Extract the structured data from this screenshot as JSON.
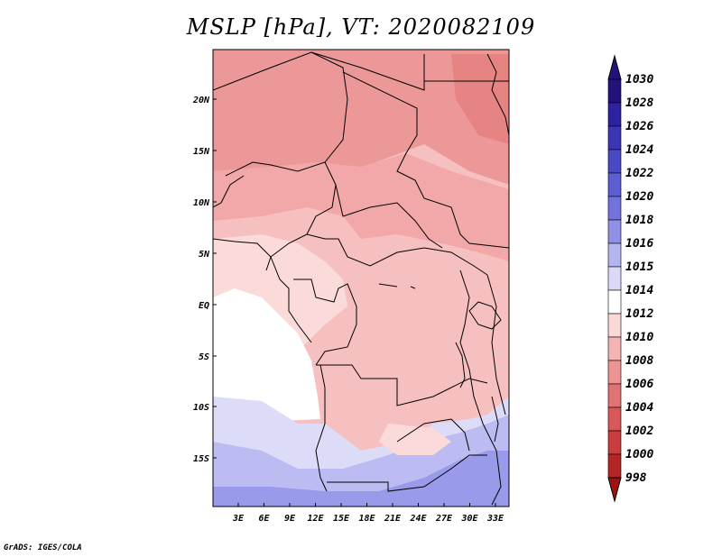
{
  "title": "MSLP [hPa], VT: 2020082109",
  "credit": "GrADS: IGES/COLA",
  "lat_labels": [
    "20N",
    "15N",
    "10N",
    "5N",
    "EQ",
    "5S",
    "10S",
    "15S"
  ],
  "lon_labels": [
    "3E",
    "6E",
    "9E",
    "12E",
    "15E",
    "18E",
    "21E",
    "24E",
    "27E",
    "30E",
    "33E"
  ],
  "colorbar": {
    "labels": [
      "1030",
      "1028",
      "1026",
      "1024",
      "1022",
      "1020",
      "1018",
      "1016",
      "1015",
      "1014",
      "1012",
      "1010",
      "1008",
      "1006",
      "1004",
      "1002",
      "1000",
      "998"
    ],
    "colors": [
      "#23127a",
      "#2d22a0",
      "#3a36b4",
      "#4a4ac4",
      "#5c5ed2",
      "#7274dc",
      "#9090e6",
      "#b4b4f0",
      "#dadaf8",
      "#ffffff",
      "#fbd8d8",
      "#f4b4b4",
      "#ec9494",
      "#e07474",
      "#d65858",
      "#c83e3e",
      "#b42626",
      "#a01212"
    ]
  },
  "map_regions": {
    "sahara_north": "#ec9898",
    "sahel": "#f2a8a8",
    "central": "#f7c0c0",
    "coastal": "#fbdada",
    "ocean": "#ffffff",
    "south_light": "#dcdcf8",
    "south_mid": "#bcbcf2",
    "south_dark": "#9a9aea",
    "sudan_high": "#e68484"
  }
}
